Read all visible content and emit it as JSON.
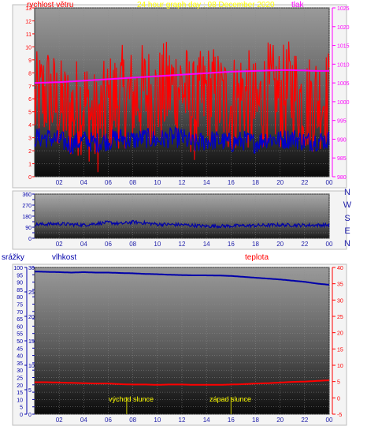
{
  "header": {
    "left_title": "rychlost větru",
    "center_title": "24 hour graph day : 08 December 2020",
    "right_title": "tlak"
  },
  "compass": [
    "N",
    "W",
    "S",
    "E",
    "N"
  ],
  "lower_labels": {
    "rain": "srážky",
    "humidity": "vlhkost",
    "temperature": "teplota",
    "sunrise": "východ slunce",
    "sunset": "západ slunce"
  },
  "colors": {
    "wind_speed": "#ff0000",
    "wind_avg": "#0000cc",
    "pressure": "#ff00ff",
    "direction": "#0000aa",
    "humidity": "#0000aa",
    "temperature": "#ff0000",
    "title": "#ffff00",
    "axis_left": "#ff0000",
    "axis_right": "#ff00ff"
  },
  "chart_data": [
    {
      "type": "line",
      "id": "wind_pressure",
      "title": "24 hour graph day : 08 December 2020",
      "x_ticks": [
        "02",
        "04",
        "06",
        "08",
        "10",
        "12",
        "14",
        "16",
        "18",
        "20",
        "22",
        "00"
      ],
      "y_left": {
        "label": "rychlost větru",
        "lim": [
          0,
          13
        ],
        "ticks": [
          0,
          1,
          2,
          3,
          4,
          5,
          6,
          7,
          8,
          9,
          10,
          11,
          12,
          13
        ]
      },
      "y_right": {
        "label": "tlak",
        "lim": [
          980,
          1025
        ],
        "ticks": [
          980,
          985,
          990,
          995,
          1000,
          1005,
          1010,
          1015,
          1020,
          1025
        ]
      },
      "series": [
        {
          "name": "rychlost větru",
          "axis": "left",
          "x": [
            0,
            1,
            2,
            3,
            4,
            5,
            6,
            7,
            8,
            9,
            10,
            11,
            12,
            13,
            14,
            15,
            16,
            17,
            18,
            19,
            20,
            21,
            22,
            23,
            24
          ],
          "values": [
            5.5,
            6.5,
            5.2,
            5.0,
            5.8,
            4.0,
            5.5,
            6.2,
            6.0,
            6.5,
            6.0,
            6.8,
            7.0,
            5.0,
            6.5,
            6.0,
            5.5,
            6.5,
            5.0,
            6.5,
            6.0,
            6.8,
            5.5,
            6.0,
            6.0
          ]
        },
        {
          "name": "",
          "axis": "left",
          "x": [
            0,
            1,
            2,
            3,
            4,
            5,
            6,
            7,
            8,
            9,
            10,
            11,
            12,
            13,
            14,
            15,
            16,
            17,
            18,
            19,
            20,
            21,
            22,
            23,
            24
          ],
          "values": [
            3.0,
            3.0,
            2.8,
            2.5,
            2.8,
            2.6,
            2.8,
            3.0,
            2.8,
            3.0,
            2.8,
            3.0,
            3.0,
            2.5,
            2.8,
            2.8,
            2.6,
            2.8,
            2.6,
            3.0,
            2.8,
            3.0,
            2.7,
            2.8,
            2.8
          ]
        },
        {
          "name": "tlak",
          "axis": "right",
          "x": [
            0,
            1,
            2,
            3,
            4,
            5,
            6,
            7,
            8,
            9,
            10,
            11,
            12,
            13,
            14,
            15,
            16,
            17,
            18,
            19,
            20,
            21,
            22,
            23,
            24
          ],
          "values": [
            1005.0,
            1005.1,
            1005.2,
            1005.4,
            1005.6,
            1005.8,
            1006.0,
            1006.2,
            1006.4,
            1006.6,
            1006.8,
            1007.0,
            1007.2,
            1007.4,
            1007.6,
            1007.8,
            1008.0,
            1008.1,
            1008.2,
            1008.3,
            1008.4,
            1008.4,
            1008.3,
            1008.2,
            1008.2
          ]
        }
      ],
      "grid": true
    },
    {
      "type": "line",
      "id": "wind_direction",
      "x_ticks": [
        "02",
        "04",
        "06",
        "08",
        "10",
        "12",
        "14",
        "16",
        "18",
        "20",
        "22",
        "00"
      ],
      "y_left": {
        "lim": [
          0,
          360
        ],
        "ticks": [
          0,
          45,
          90,
          135,
          180,
          225,
          270,
          315,
          360
        ],
        "tick_labels": [
          "0",
          "",
          "90",
          "",
          "180",
          "",
          "270",
          "",
          "360"
        ]
      },
      "series": [
        {
          "name": "",
          "x": [
            0,
            2,
            4,
            5,
            6,
            7,
            8,
            9,
            10,
            12,
            13,
            14,
            16,
            18,
            20,
            22,
            24
          ],
          "values": [
            112,
            118,
            108,
            120,
            128,
            118,
            132,
            124,
            114,
            110,
            104,
            98,
            100,
            104,
            108,
            106,
            108
          ]
        }
      ],
      "grid": true
    },
    {
      "type": "line",
      "id": "humidity_temperature",
      "x_ticks": [
        "02",
        "04",
        "06",
        "08",
        "10",
        "12",
        "14",
        "16",
        "18",
        "20",
        "22",
        "00"
      ],
      "y_left": {
        "label": "vlhkost",
        "lim": [
          0,
          100
        ],
        "ticks": [
          0,
          5,
          10,
          15,
          20,
          25,
          30,
          35,
          40,
          45,
          50,
          55,
          60,
          65,
          70,
          75,
          80,
          85,
          90,
          95,
          100
        ],
        "rain_label": "srážky",
        "rain_ticks": [
          0,
          5,
          10,
          15,
          20,
          25,
          30
        ]
      },
      "y_right": {
        "label": "teplota",
        "lim": [
          -5,
          40
        ],
        "ticks": [
          -5,
          0,
          5,
          10,
          15,
          20,
          25,
          30,
          35,
          40
        ]
      },
      "series": [
        {
          "name": "vlhkost",
          "axis": "left",
          "x": [
            0,
            1,
            2,
            3,
            4,
            5,
            6,
            7,
            8,
            9,
            10,
            11,
            12,
            13,
            14,
            15,
            16,
            17,
            18,
            19,
            20,
            21,
            22,
            23,
            24
          ],
          "values": [
            97.2,
            97.0,
            96.8,
            96.5,
            96.8,
            96.5,
            96.5,
            96.2,
            96.0,
            95.6,
            95.4,
            95.0,
            94.8,
            94.6,
            94.6,
            94.5,
            94.2,
            93.6,
            93.0,
            92.4,
            91.8,
            91.0,
            90.2,
            89.0,
            88.2
          ]
        },
        {
          "name": "teplota",
          "axis": "right",
          "x": [
            0,
            1,
            2,
            3,
            4,
            5,
            6,
            7,
            8,
            9,
            10,
            11,
            12,
            13,
            14,
            15,
            16,
            17,
            18,
            19,
            20,
            21,
            22,
            23,
            24
          ],
          "values": [
            4.8,
            4.8,
            4.7,
            4.6,
            4.5,
            4.4,
            4.4,
            4.2,
            4.1,
            4.1,
            4.0,
            4.1,
            4.1,
            4.0,
            4.0,
            4.0,
            4.1,
            4.2,
            4.4,
            4.5,
            4.7,
            4.9,
            5.0,
            5.2,
            5.4
          ]
        }
      ],
      "annotations": [
        {
          "text": "východ slunce",
          "x": 7.5
        },
        {
          "text": "západ slunce",
          "x": 16.0
        }
      ],
      "grid": true
    }
  ]
}
